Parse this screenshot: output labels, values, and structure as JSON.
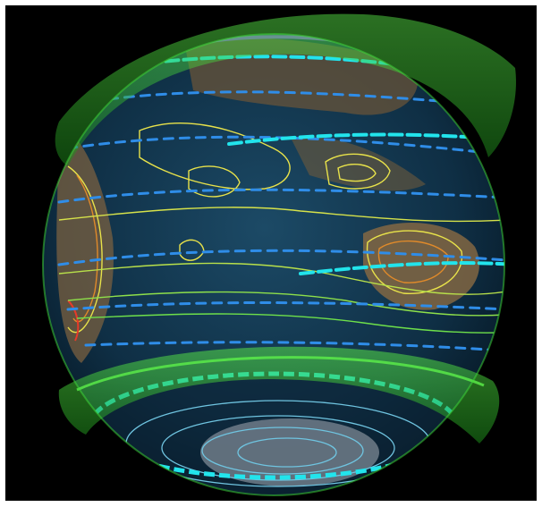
{
  "scene": {
    "subject": "globe-visualization",
    "colors": {
      "background": "#000000",
      "ocean": "#0f2f45",
      "land": "#7a6040",
      "ice": "#d9dde2",
      "band": "#3fdc3a",
      "ring_cyan": "#22e4ec",
      "arrow_blue": "#2f8de8",
      "contour_yellow": "#e8e24a",
      "contour_orange": "#e08a2a",
      "contour_red": "#e63a2a",
      "contour_cyan": "#6fc4e0",
      "polar_magenta": "#c84cd8"
    }
  }
}
